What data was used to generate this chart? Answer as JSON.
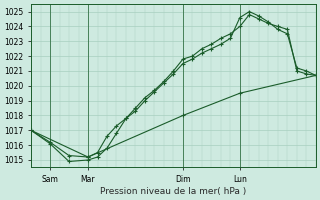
{
  "background_color": "#ceeae0",
  "grid_color": "#a8cfc0",
  "line_color": "#1a5c2a",
  "marker_color": "#1a5c2a",
  "title": "Pression niveau de la mer( hPa )",
  "ylim": [
    1014.5,
    1025.5
  ],
  "yticks": [
    1015,
    1016,
    1017,
    1018,
    1019,
    1020,
    1021,
    1022,
    1023,
    1024,
    1025
  ],
  "x_tick_labels": [
    "Sam",
    "Mar",
    "Dim",
    "Lun"
  ],
  "x_tick_positions": [
    1,
    3,
    8,
    11
  ],
  "x_vlines": [
    1,
    3,
    8,
    11
  ],
  "xlim": [
    0,
    15
  ],
  "series1_x": [
    0,
    1,
    2,
    3,
    3.5,
    4,
    4.5,
    5,
    5.5,
    6,
    6.5,
    7,
    7.5,
    8,
    8.5,
    9,
    9.5,
    10,
    10.5,
    11,
    11.5,
    12,
    12.5,
    13,
    13.5,
    14,
    14.5,
    15
  ],
  "series1_y": [
    1017.0,
    1016.2,
    1015.3,
    1015.2,
    1015.5,
    1016.6,
    1017.3,
    1017.8,
    1018.5,
    1019.2,
    1019.7,
    1020.3,
    1021.0,
    1021.8,
    1022.0,
    1022.5,
    1022.8,
    1023.2,
    1023.5,
    1024.0,
    1024.8,
    1024.5,
    1024.2,
    1024.0,
    1023.8,
    1021.0,
    1020.8,
    1020.7
  ],
  "series2_x": [
    0,
    1,
    2,
    3,
    3.5,
    4,
    4.5,
    5,
    5.5,
    6,
    6.5,
    7,
    7.5,
    8,
    8.5,
    9,
    9.5,
    10,
    10.5,
    11,
    11.5,
    12,
    12.5,
    13,
    13.5,
    14,
    14.5,
    15
  ],
  "series2_y": [
    1017.0,
    1016.1,
    1014.9,
    1015.0,
    1015.2,
    1015.8,
    1016.8,
    1017.8,
    1018.3,
    1019.0,
    1019.6,
    1020.2,
    1020.8,
    1021.5,
    1021.8,
    1022.2,
    1022.5,
    1022.8,
    1023.2,
    1024.6,
    1025.0,
    1024.7,
    1024.3,
    1023.8,
    1023.5,
    1021.2,
    1021.0,
    1020.7
  ],
  "series3_x": [
    0,
    3,
    8,
    11,
    15
  ],
  "series3_y": [
    1017.0,
    1015.2,
    1018.0,
    1019.5,
    1020.7
  ]
}
